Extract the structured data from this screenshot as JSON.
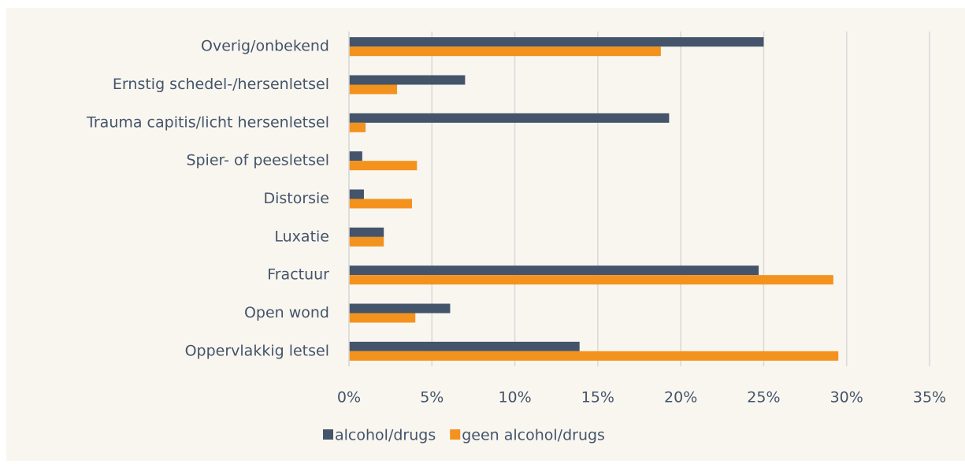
{
  "chart_data": {
    "type": "bar",
    "orientation": "horizontal",
    "categories": [
      "Overig/onbekend",
      "Ernstig schedel-/hersenletsel",
      "Trauma capitis/licht hersenletsel",
      "Spier- of peesletsel",
      "Distorsie",
      "Luxatie",
      "Fractuur",
      "Open wond",
      "Oppervlakkig letsel"
    ],
    "series": [
      {
        "name": "alcohol/drugs",
        "color": "#44546a",
        "values": [
          25.0,
          7.0,
          19.3,
          0.8,
          0.9,
          2.1,
          24.7,
          6.1,
          13.9
        ]
      },
      {
        "name": "geen alcohol/drugs",
        "color": "#f4921e",
        "values": [
          18.8,
          2.9,
          1.0,
          4.1,
          3.8,
          2.1,
          29.2,
          4.0,
          29.5
        ]
      }
    ],
    "xlim": [
      0,
      35
    ],
    "xticks": [
      {
        "value": 0,
        "label": "0%"
      },
      {
        "value": 5,
        "label": "5%"
      },
      {
        "value": 10,
        "label": "10%"
      },
      {
        "value": 15,
        "label": "15%"
      },
      {
        "value": 20,
        "label": "20%"
      },
      {
        "value": 25,
        "label": "25%"
      },
      {
        "value": 30,
        "label": "30%"
      },
      {
        "value": 35,
        "label": "35%"
      }
    ],
    "grid": true,
    "legend": "bottom"
  }
}
